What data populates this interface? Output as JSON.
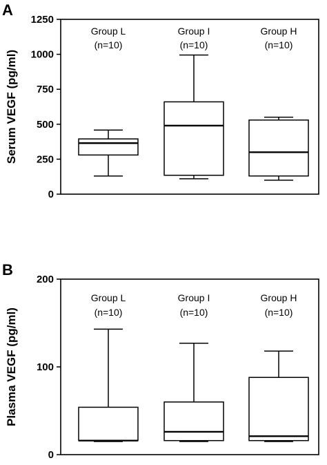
{
  "chart_data": [
    {
      "type": "box",
      "panel_label": "A",
      "ylabel": "Serum VEGF (pg/ml)",
      "ylim": [
        0,
        1250
      ],
      "yticks": [
        0,
        250,
        500,
        750,
        1000,
        1250
      ],
      "grid": false,
      "groups": [
        {
          "name": "Group L",
          "n_label": "(n=10)",
          "min": 130,
          "q1": 280,
          "median": 365,
          "q3": 395,
          "max": 458
        },
        {
          "name": "Group I",
          "n_label": "(n=10)",
          "min": 110,
          "q1": 135,
          "median": 490,
          "q3": 660,
          "max": 995
        },
        {
          "name": "Group H",
          "n_label": "(n=10)",
          "min": 100,
          "q1": 130,
          "median": 300,
          "q3": 530,
          "max": 550
        }
      ]
    },
    {
      "type": "box",
      "panel_label": "B",
      "ylabel": "Plasma VEGF (pg/ml)",
      "ylim": [
        0,
        200
      ],
      "yticks": [
        0,
        100,
        200
      ],
      "grid": false,
      "groups": [
        {
          "name": "Group L",
          "n_label": "(n=10)",
          "min": 15,
          "q1": 16,
          "median": 16,
          "q3": 54,
          "max": 143
        },
        {
          "name": "Group I",
          "n_label": "(n=10)",
          "min": 15,
          "q1": 16,
          "median": 26,
          "q3": 60,
          "max": 127
        },
        {
          "name": "Group H",
          "n_label": "(n=10)",
          "min": 15,
          "q1": 16,
          "median": 21,
          "q3": 88,
          "max": 118
        }
      ]
    }
  ]
}
